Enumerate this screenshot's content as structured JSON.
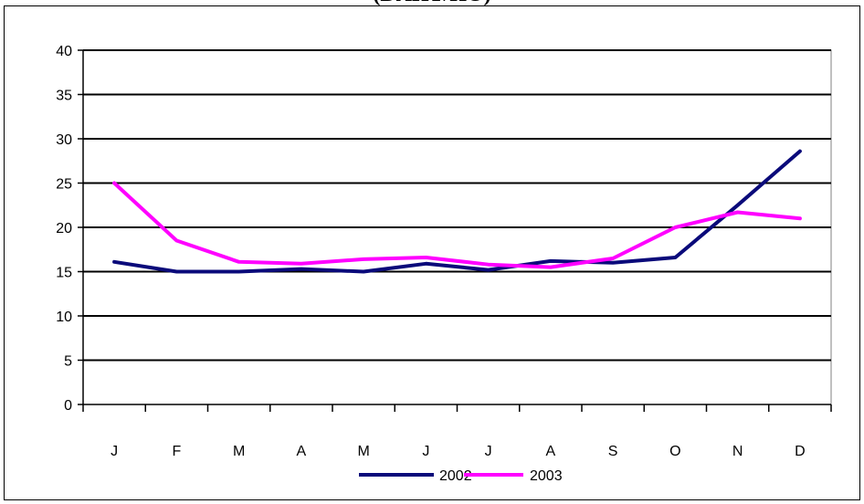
{
  "chart_data": {
    "type": "line",
    "title": "(DAHT/HO)",
    "categories": [
      "J",
      "F",
      "M",
      "A",
      "M",
      "J",
      "J",
      "A",
      "S",
      "O",
      "N",
      "D"
    ],
    "ylim": [
      0,
      40
    ],
    "yticks": [
      0,
      5,
      10,
      15,
      20,
      25,
      30,
      35,
      40
    ],
    "grid": true,
    "legend_position": "bottom",
    "series": [
      {
        "name": "2002",
        "color": "#0a0a7a",
        "values": [
          16.1,
          15.0,
          15.0,
          15.3,
          15.0,
          15.9,
          15.2,
          16.2,
          16.0,
          16.6,
          22.5,
          28.6
        ]
      },
      {
        "name": "2003",
        "color": "#ff00ff",
        "values": [
          25.0,
          18.5,
          16.1,
          15.9,
          16.4,
          16.6,
          15.8,
          15.5,
          16.5,
          20.0,
          21.7,
          21.0
        ]
      }
    ]
  }
}
